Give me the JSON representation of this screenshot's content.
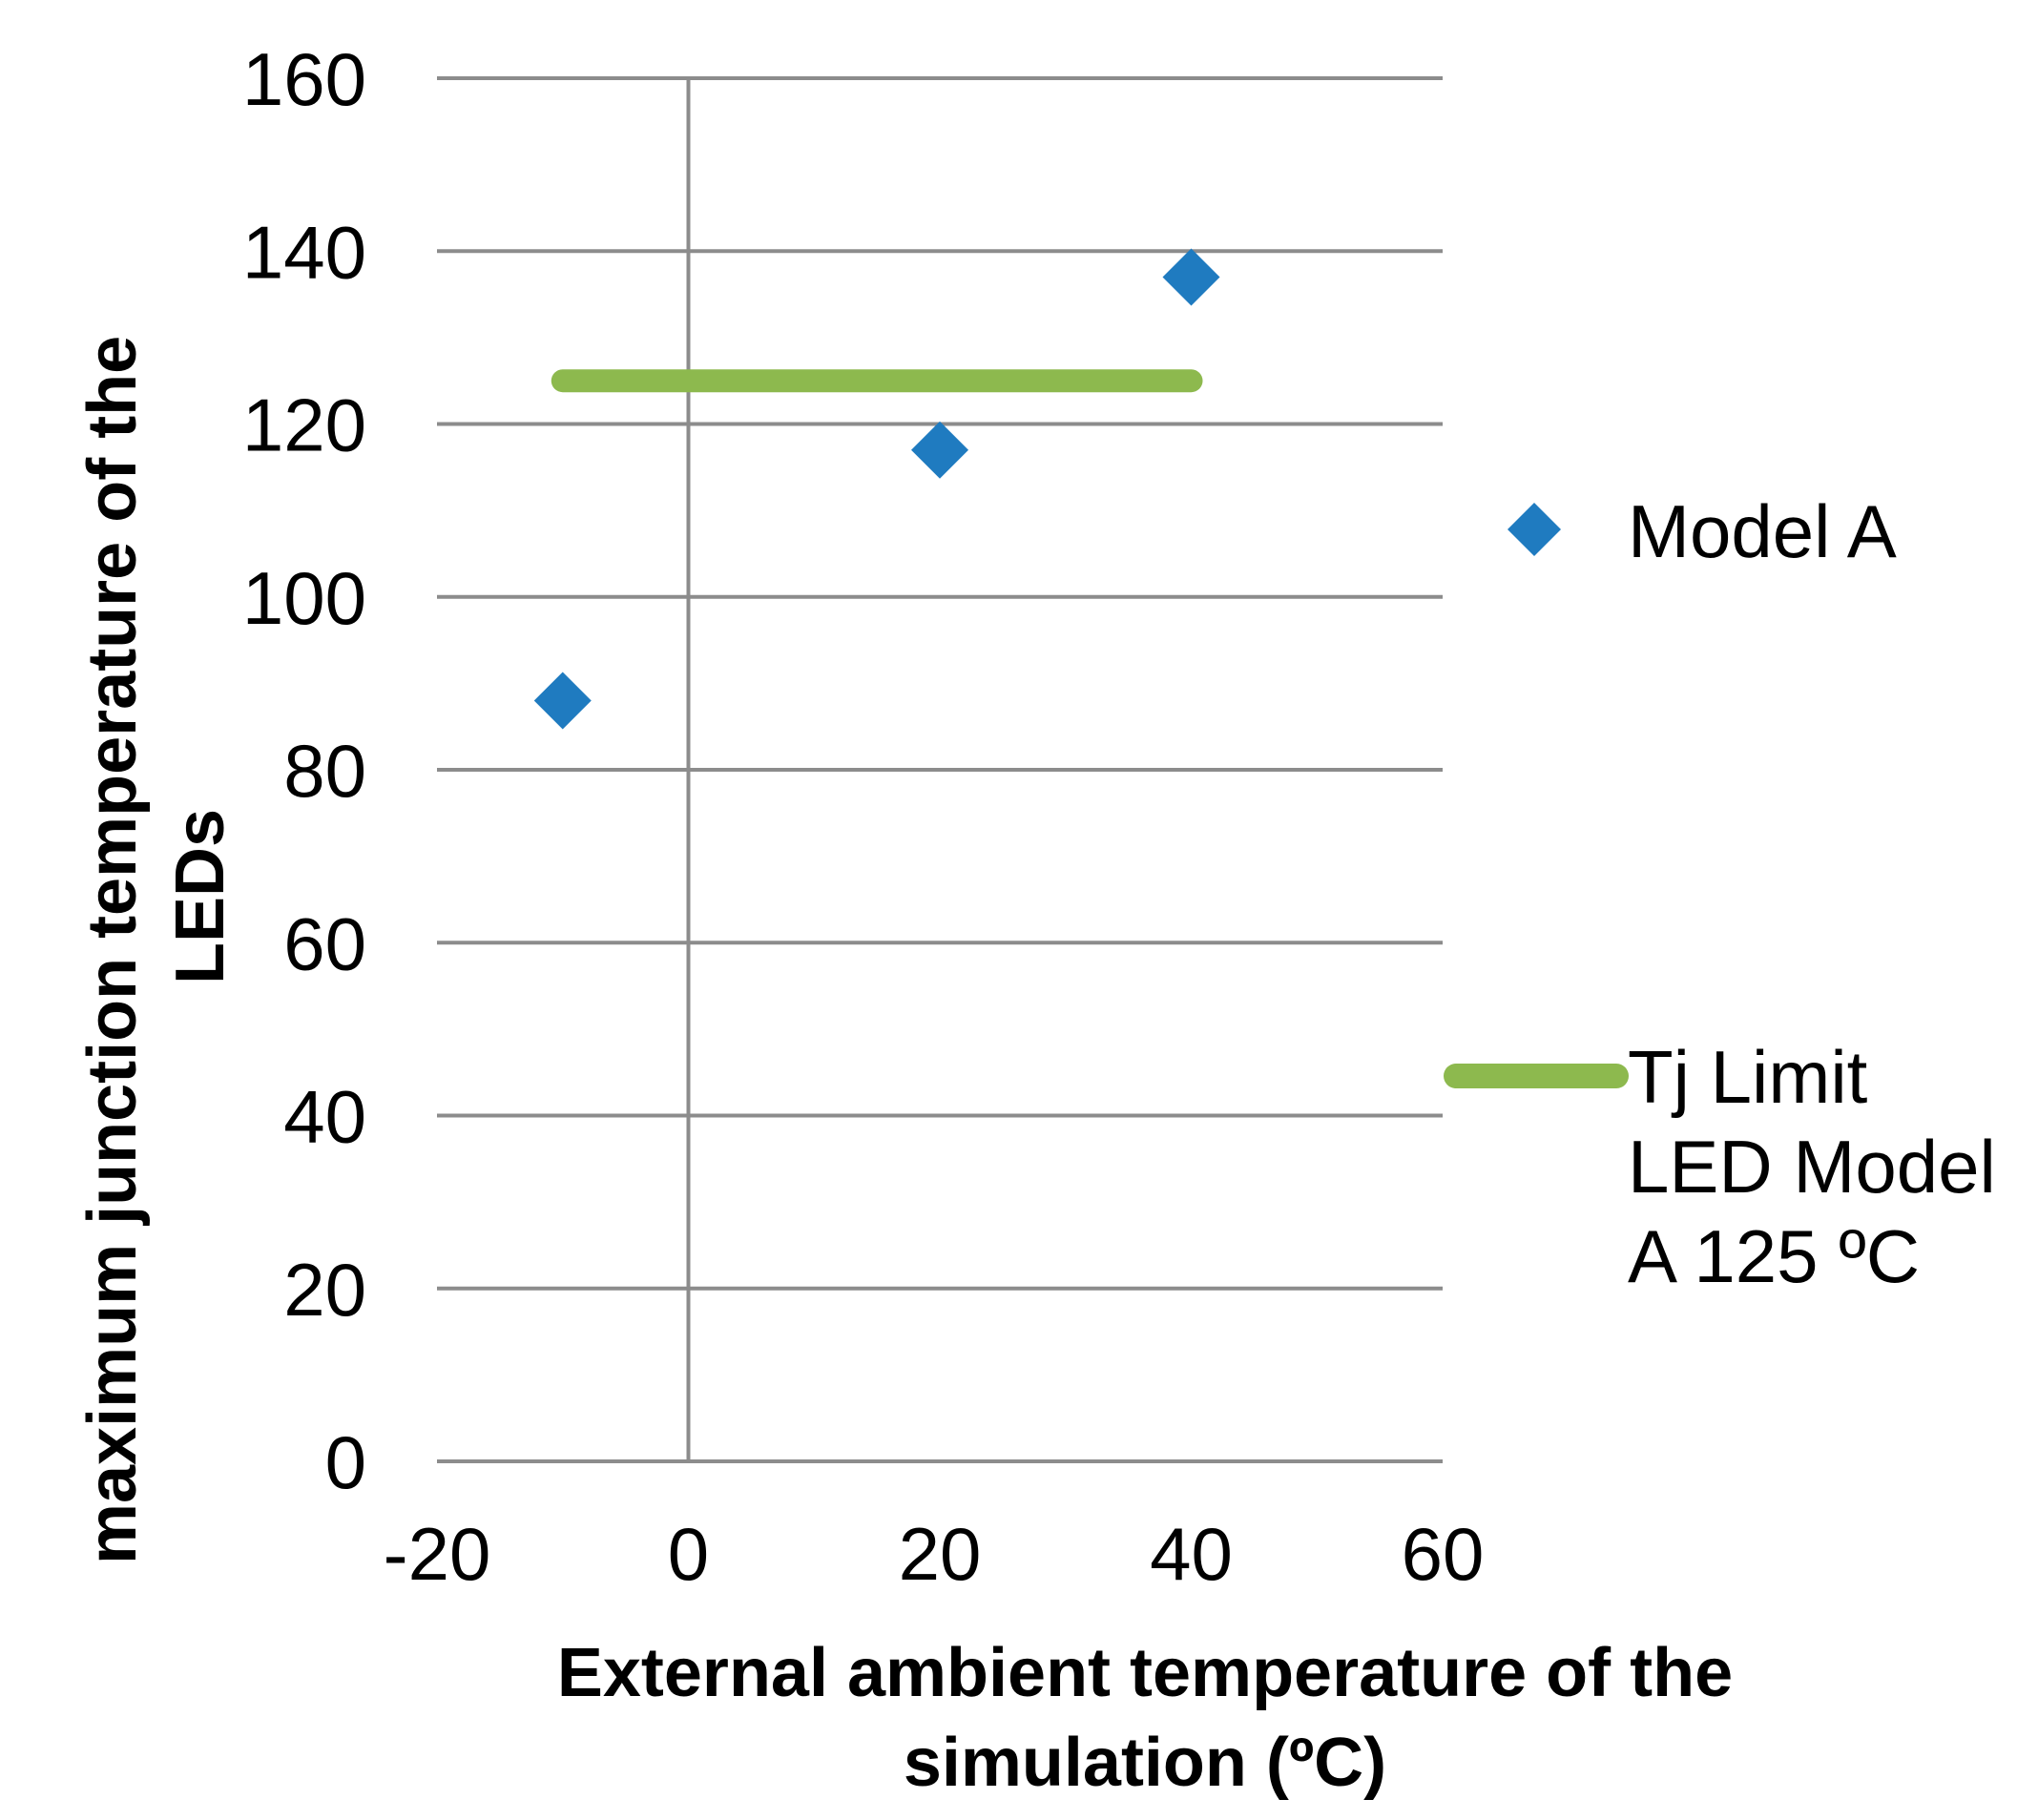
{
  "chart_data": {
    "type": "scatter",
    "title": "",
    "xlabel_lines": [
      "External ambient temperature of the",
      "simulation (ºC)"
    ],
    "ylabel_lines": [
      "maximum junction temperature of the",
      "LEDs"
    ],
    "xlim": [
      -20,
      60
    ],
    "ylim": [
      0,
      160
    ],
    "xticks": [
      "-20",
      "0",
      "20",
      "40",
      "60"
    ],
    "yticks": [
      "0",
      "20",
      "40",
      "60",
      "80",
      "100",
      "120",
      "140",
      "160"
    ],
    "grid": true,
    "legend_position": "right",
    "series": [
      {
        "name": "Model A",
        "kind": "markers",
        "marker": "diamond",
        "color": "#1F7BC0",
        "x": [
          -10,
          20,
          40
        ],
        "y": [
          88,
          117,
          137
        ]
      },
      {
        "name": "Tj Limit LED Model A 125 ºC",
        "legend_lines": [
          "Tj Limit",
          "LED Model",
          "A 125 ºC"
        ],
        "kind": "line",
        "color": "#8DB94E",
        "x": [
          -10,
          40
        ],
        "y": [
          125,
          125
        ]
      }
    ]
  }
}
